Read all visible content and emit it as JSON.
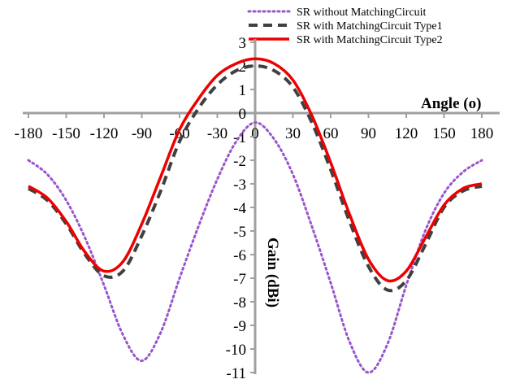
{
  "chart_data": {
    "type": "line",
    "title": "",
    "xlabel": "Angle (o)",
    "ylabel": "Gain (dBi)",
    "xlim": [
      -180,
      180
    ],
    "ylim": [
      -11,
      3
    ],
    "xticks": [
      -180,
      -150,
      -120,
      -90,
      -60,
      -30,
      0,
      30,
      60,
      90,
      120,
      150,
      180
    ],
    "yticks": [
      3,
      2,
      1,
      0,
      -1,
      -2,
      -3,
      -4,
      -5,
      -6,
      -7,
      -8,
      -9,
      -10,
      -11
    ],
    "grid": false,
    "legend_position": "top-right",
    "series": [
      {
        "name": "SR without MatchingCircuit",
        "color": "#9955cc",
        "style": "dotted",
        "x": [
          -180,
          -165,
          -150,
          -135,
          -120,
          -105,
          -90,
          -75,
          -60,
          -45,
          -30,
          -15,
          0,
          15,
          30,
          45,
          60,
          75,
          90,
          105,
          120,
          135,
          150,
          165,
          180
        ],
        "y": [
          -2.0,
          -2.6,
          -3.7,
          -5.3,
          -7.3,
          -9.4,
          -10.5,
          -9.3,
          -7.0,
          -4.8,
          -2.8,
          -1.2,
          -0.4,
          -1.1,
          -2.6,
          -4.8,
          -7.2,
          -9.7,
          -11.0,
          -9.8,
          -7.3,
          -5.0,
          -3.4,
          -2.5,
          -2.0
        ]
      },
      {
        "name": "SR with MatchingCircuit Type1",
        "color": "#404040",
        "style": "dashed",
        "x": [
          -180,
          -165,
          -150,
          -135,
          -120,
          -105,
          -90,
          -75,
          -60,
          -45,
          -30,
          -15,
          0,
          15,
          30,
          45,
          60,
          75,
          90,
          105,
          120,
          135,
          150,
          165,
          180
        ],
        "y": [
          -3.2,
          -3.7,
          -4.7,
          -6.0,
          -6.9,
          -6.7,
          -5.2,
          -3.3,
          -1.2,
          0.2,
          1.2,
          1.8,
          2.0,
          1.8,
          1.1,
          -0.4,
          -2.4,
          -4.6,
          -6.5,
          -7.5,
          -7.1,
          -5.6,
          -4.0,
          -3.3,
          -3.1
        ]
      },
      {
        "name": "SR with MatchingCircuit Type2",
        "color": "#ee0000",
        "style": "solid",
        "x": [
          -180,
          -165,
          -150,
          -135,
          -120,
          -105,
          -90,
          -75,
          -60,
          -45,
          -30,
          -15,
          0,
          15,
          30,
          45,
          60,
          75,
          90,
          105,
          120,
          135,
          150,
          165,
          180
        ],
        "y": [
          -3.1,
          -3.6,
          -4.6,
          -5.9,
          -6.7,
          -6.3,
          -4.7,
          -2.7,
          -0.7,
          0.6,
          1.6,
          2.1,
          2.3,
          2.1,
          1.4,
          -0.1,
          -2.1,
          -4.3,
          -6.2,
          -7.1,
          -6.7,
          -5.3,
          -3.9,
          -3.2,
          -3.0
        ]
      }
    ]
  }
}
